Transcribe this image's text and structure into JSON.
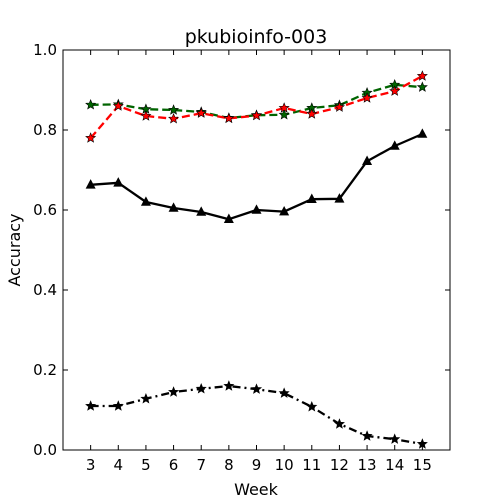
{
  "chart_data": {
    "type": "line",
    "title": "pkubioinfo-003",
    "xlabel": "Week",
    "ylabel": "Accuracy",
    "xlim": [
      2,
      16
    ],
    "ylim": [
      0.0,
      1.0
    ],
    "xticks": [
      "3",
      "4",
      "5",
      "6",
      "7",
      "8",
      "9",
      "10",
      "11",
      "12",
      "13",
      "14",
      "15"
    ],
    "yticks": [
      "0.0",
      "0.2",
      "0.4",
      "0.6",
      "0.8",
      "1.0"
    ],
    "grid": false,
    "legend": "none",
    "x": [
      3,
      4,
      5,
      6,
      7,
      8,
      9,
      10,
      11,
      12,
      13,
      14,
      15
    ],
    "series": [
      {
        "color": "#006400",
        "line_style": "dashed",
        "marker": "star",
        "values": [
          0.863,
          0.864,
          0.852,
          0.85,
          0.845,
          0.83,
          0.837,
          0.838,
          0.855,
          0.862,
          0.893,
          0.913,
          0.907
        ]
      },
      {
        "color": "#ff0000",
        "line_style": "dashed",
        "marker": "star",
        "values": [
          0.78,
          0.86,
          0.835,
          0.828,
          0.842,
          0.829,
          0.836,
          0.855,
          0.84,
          0.857,
          0.88,
          0.897,
          0.935
        ]
      },
      {
        "color": "#000000",
        "line_style": "solid",
        "marker": "triangle",
        "values": [
          0.663,
          0.668,
          0.62,
          0.605,
          0.595,
          0.577,
          0.6,
          0.596,
          0.627,
          0.628,
          0.722,
          0.76,
          0.79
        ]
      },
      {
        "color": "#000000",
        "line_style": "dashdot",
        "marker": "star",
        "values": [
          0.11,
          0.11,
          0.128,
          0.145,
          0.153,
          0.16,
          0.152,
          0.142,
          0.108,
          0.065,
          0.035,
          0.027,
          0.015
        ]
      }
    ]
  }
}
